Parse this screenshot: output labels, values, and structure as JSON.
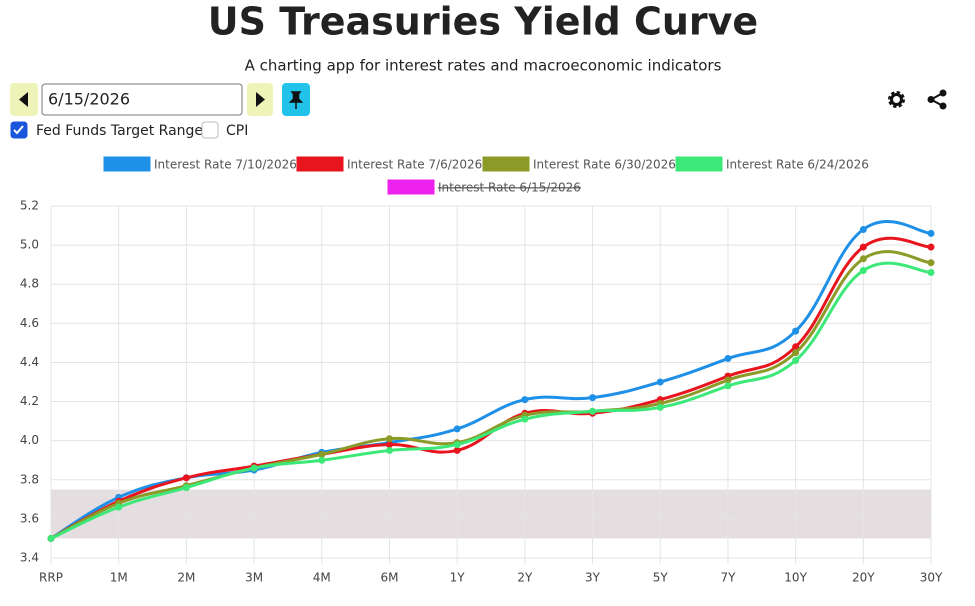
{
  "chart_data": {
    "type": "line",
    "title": "US Treasuries Yield Curve",
    "subtitle": "A charting app for interest rates and macroeconomic indicators",
    "controls": {
      "date": "6/15/2026",
      "fed_funds_label": "Fed Funds Target Range",
      "fed_funds_checked": true,
      "cpi_label": "CPI",
      "cpi_checked": false
    },
    "categories": [
      "RRP",
      "1M",
      "2M",
      "3M",
      "4M",
      "6M",
      "1Y",
      "2Y",
      "3Y",
      "5Y",
      "7Y",
      "10Y",
      "20Y",
      "30Y"
    ],
    "series": [
      {
        "name": "Interest Rate 7/10/2026",
        "color": "#1e90e8",
        "values": [
          3.5,
          3.71,
          3.81,
          3.85,
          3.94,
          3.99,
          4.06,
          4.21,
          4.22,
          4.3,
          4.42,
          4.56,
          5.08,
          5.06
        ]
      },
      {
        "name": "Interest Rate 7/6/2026",
        "color": "#e8141e",
        "values": [
          3.5,
          3.69,
          3.81,
          3.87,
          3.93,
          3.98,
          3.95,
          4.14,
          4.14,
          4.21,
          4.33,
          4.48,
          4.99,
          4.99
        ]
      },
      {
        "name": "Interest Rate 6/30/2026",
        "color": "#8c9a28",
        "values": [
          3.5,
          3.68,
          3.77,
          3.86,
          3.93,
          4.01,
          3.99,
          4.13,
          4.15,
          4.19,
          4.31,
          4.45,
          4.93,
          4.91
        ]
      },
      {
        "name": "Interest Rate 6/24/2026",
        "color": "#3ce878",
        "values": [
          3.5,
          3.66,
          3.76,
          3.86,
          3.9,
          3.95,
          3.98,
          4.11,
          4.15,
          4.17,
          4.28,
          4.41,
          4.87,
          4.86
        ]
      },
      {
        "name": "Interest Rate 6/15/2026",
        "color": "#ee22ee",
        "hidden": true,
        "values": [
          null,
          null,
          null,
          null,
          null,
          null,
          null,
          null,
          null,
          null,
          null,
          null,
          null,
          null
        ]
      }
    ],
    "fed_funds_range": [
      3.5,
      3.75
    ],
    "ylim": [
      3.4,
      5.2
    ],
    "yticks": [
      3.4,
      3.6,
      3.8,
      {
        "value": 4,
        "label": "4.0"
      },
      4.2,
      4.4,
      4.6,
      4.8,
      {
        "value": 5,
        "label": "5.0"
      },
      5.2
    ],
    "grid": true
  }
}
